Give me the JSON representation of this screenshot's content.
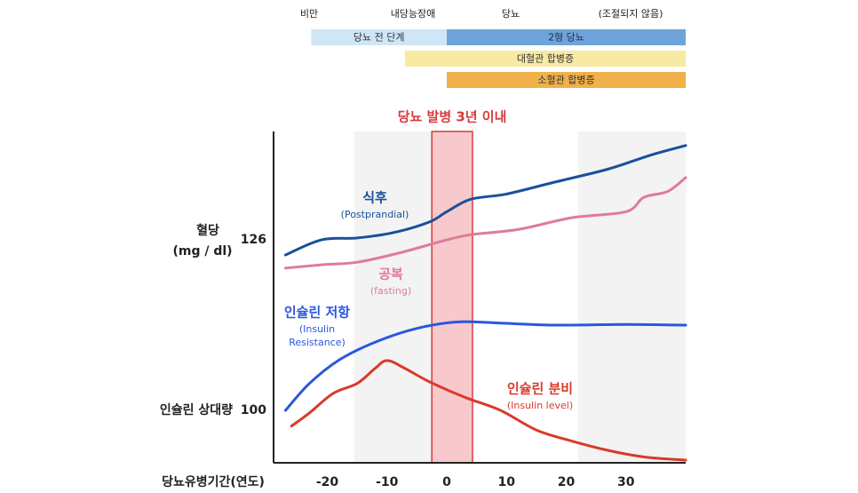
{
  "chart_data": {
    "type": "line",
    "stage_labels": [
      "비만",
      "내당능장애",
      "당뇨",
      "(조절되지 않음)"
    ],
    "stage_bars": [
      {
        "label": "당뇨 전 단계",
        "x0": -22.7,
        "x1": 0,
        "color": "#cfe6f7",
        "text_color": "#333"
      },
      {
        "label": "2형 당뇨",
        "x0": 0,
        "x1": 40,
        "color": "#6fa3dc",
        "text_color": "#1f2f4a"
      },
      {
        "label": "대혈관 합병증",
        "x0": -7,
        "x1": 40,
        "color": "#f7eaa3",
        "text_color": "#333"
      },
      {
        "label": "소혈관 합병증",
        "x0": 0,
        "x1": 40,
        "color": "#f0b04a",
        "text_color": "#333"
      }
    ],
    "highlight": {
      "label": "당뇨 발병 3년 이내",
      "x0": -2.5,
      "x1": 4.3,
      "color": "#f7c9cc",
      "edge": "#d93a3a"
    },
    "shaded": [
      {
        "x0": -15.5,
        "x1": 4.3
      },
      {
        "x0": 22,
        "x1": 40
      }
    ],
    "x_label": "당뇨유병기간(연도)",
    "y_label": [
      "혈당",
      "(mg / dl)"
    ],
    "y_label2": "인슐린 상대량",
    "xlim": [
      -29,
      40
    ],
    "xticks": [
      -20,
      -10,
      0,
      10,
      20,
      30
    ],
    "ylim": [
      92,
      142
    ],
    "yticks": [
      126,
      100
    ],
    "series": [
      {
        "name": "식후",
        "sublabel": [
          "(Postprandial)"
        ],
        "color": "#1a4f9c",
        "x": [
          -27,
          -21,
          -15,
          -9,
          -3,
          0,
          4,
          10,
          18,
          27,
          34,
          40
        ],
        "values": [
          123.7,
          126,
          126.3,
          127.1,
          128.7,
          130.3,
          132.2,
          133,
          134.8,
          136.8,
          138.9,
          140.4
        ]
      },
      {
        "name": "공복",
        "sublabel": [
          "(fasting)"
        ],
        "color": "#e07a9a",
        "x": [
          -27,
          -21,
          -15,
          -8,
          0,
          4,
          12,
          21,
          30,
          33,
          37,
          40
        ],
        "values": [
          121.7,
          122.2,
          122.6,
          124,
          126,
          126.8,
          127.6,
          129.4,
          130.3,
          132.5,
          133.4,
          135.5
        ]
      },
      {
        "name": "인슐린 저항",
        "sublabel": [
          "(Insulin",
          "Resistance)"
        ],
        "color": "#2a56e0",
        "x": [
          -27,
          -23,
          -18,
          -12,
          -5,
          2,
          9,
          18,
          30,
          40
        ],
        "values": [
          100,
          104.1,
          107.7,
          110.4,
          112.5,
          113.5,
          113.3,
          113,
          113.1,
          113
        ]
      },
      {
        "name": "인슐린 분비",
        "sublabel": [
          "(Insulin level)"
        ],
        "color": "#d93a2b",
        "x": [
          -26,
          -23,
          -19,
          -15,
          -12,
          -10,
          -7,
          -3,
          3,
          9,
          15,
          21,
          27,
          33,
          40
        ],
        "values": [
          97.6,
          99.6,
          102.6,
          104.1,
          106.4,
          107.6,
          106.4,
          104.4,
          102,
          100,
          97,
          95.3,
          93.9,
          92.9,
          92.4
        ]
      }
    ]
  }
}
